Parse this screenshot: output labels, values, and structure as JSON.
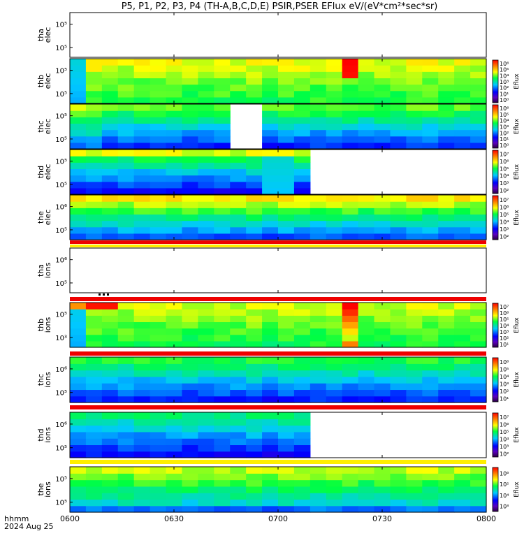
{
  "figure": {
    "title": "P5, P1, P2, P3, P4 (TH-A,B,C,D,E) PSIR,PSER EFlux eV/(eV*cm²*sec*sr)",
    "time_label": "hhmm",
    "date_label": "2024 Aug 25",
    "x_ticks": [
      "0600",
      "0630",
      "0700",
      "0730",
      "0800"
    ],
    "colorbar_label": "Eflux"
  },
  "chart_data": {
    "type": "heatmap",
    "title": "P5, P1, P2, P3, P4 (TH-A,B,C,D,E) PSIR,PSER EFlux eV/(eV*cm²*sec*sr)",
    "xlabel": "hhmm",
    "x_range": [
      "06:00",
      "08:00"
    ],
    "x_ticks": [
      "0600",
      "0630",
      "0700",
      "0730",
      "0800"
    ],
    "y_scale": "log",
    "colormap": "rainbow (purple-blue-cyan-green-yellow-red)",
    "panels": [
      {
        "id": "tha-elec",
        "label": [
          "tha",
          "elec"
        ],
        "y_ticks": [
          "10⁵",
          "10⁵"
        ],
        "colorbar_ticks": [],
        "data": "none"
      },
      {
        "id": "thb-elec",
        "label": [
          "thb",
          "elec"
        ],
        "y_ticks": [
          "10⁵",
          "10⁵"
        ],
        "colorbar_ticks": [
          "10⁶",
          "10⁵",
          "10⁴",
          "10³",
          "10²",
          "10¹",
          "10⁰"
        ],
        "data": "06:00-08:00",
        "feature": "enhancement 07:18-07:24 at low energy"
      },
      {
        "id": "thc-elec",
        "label": [
          "thc",
          "elec"
        ],
        "y_ticks": [
          "10⁵",
          "10⁵"
        ],
        "colorbar_ticks": [
          "10⁶",
          "10⁵",
          "10⁴",
          "10³",
          "10²",
          "10¹",
          "10⁰"
        ],
        "data": "06:00-08:00",
        "gap": "06:47-06:53"
      },
      {
        "id": "thd-elec",
        "label": [
          "thd",
          "elec"
        ],
        "y_ticks": [
          "10⁵",
          "10⁵"
        ],
        "colorbar_ticks": [
          "10⁷",
          "10⁶",
          "10⁵",
          "10⁴",
          "10³",
          "10²"
        ],
        "data": "06:00-07:09"
      },
      {
        "id": "the-elec",
        "label": [
          "the",
          "elec"
        ],
        "y_ticks": [
          "10⁶",
          "10⁵"
        ],
        "colorbar_ticks": [
          "10⁷",
          "10⁶",
          "10⁵",
          "10⁴",
          "10³",
          "10²"
        ],
        "data": "06:00-08:00"
      },
      {
        "id": "tha-ions",
        "label": [
          "tha",
          "ions"
        ],
        "y_ticks": [
          "10⁶",
          "10⁵"
        ],
        "colorbar_ticks": [],
        "data": "none"
      },
      {
        "id": "thb-ions",
        "label": [
          "thb",
          "ions"
        ],
        "y_ticks": [
          "10⁵",
          "10³"
        ],
        "colorbar_ticks": [
          "10⁷",
          "10⁶",
          "10⁵",
          "10⁴",
          "10³",
          "10²",
          "10¹"
        ],
        "data": "06:00-08:00",
        "feature": "enhancement 07:18-07:24 at low energy"
      },
      {
        "id": "thc-ions",
        "label": [
          "thc",
          "ions"
        ],
        "y_ticks": [
          "10⁶",
          "10⁵"
        ],
        "colorbar_ticks": [
          "10⁶",
          "10⁵",
          "10⁴",
          "10³",
          "10²",
          "10¹"
        ],
        "data": "06:00-08:00"
      },
      {
        "id": "thd-ions",
        "label": [
          "thd",
          "ions"
        ],
        "y_ticks": [
          "10⁶",
          "10⁵"
        ],
        "colorbar_ticks": [
          "10⁷",
          "10⁶",
          "10⁵",
          "10⁴",
          "10³",
          "10²"
        ],
        "data": "06:00-07:09"
      },
      {
        "id": "the-ions",
        "label": [
          "the",
          "ions"
        ],
        "y_ticks": [
          "10⁵",
          "10⁵"
        ],
        "colorbar_ticks": [
          "10⁶",
          "10⁵",
          "10⁴",
          "10³"
        ],
        "data": "06:00-08:00"
      }
    ]
  }
}
